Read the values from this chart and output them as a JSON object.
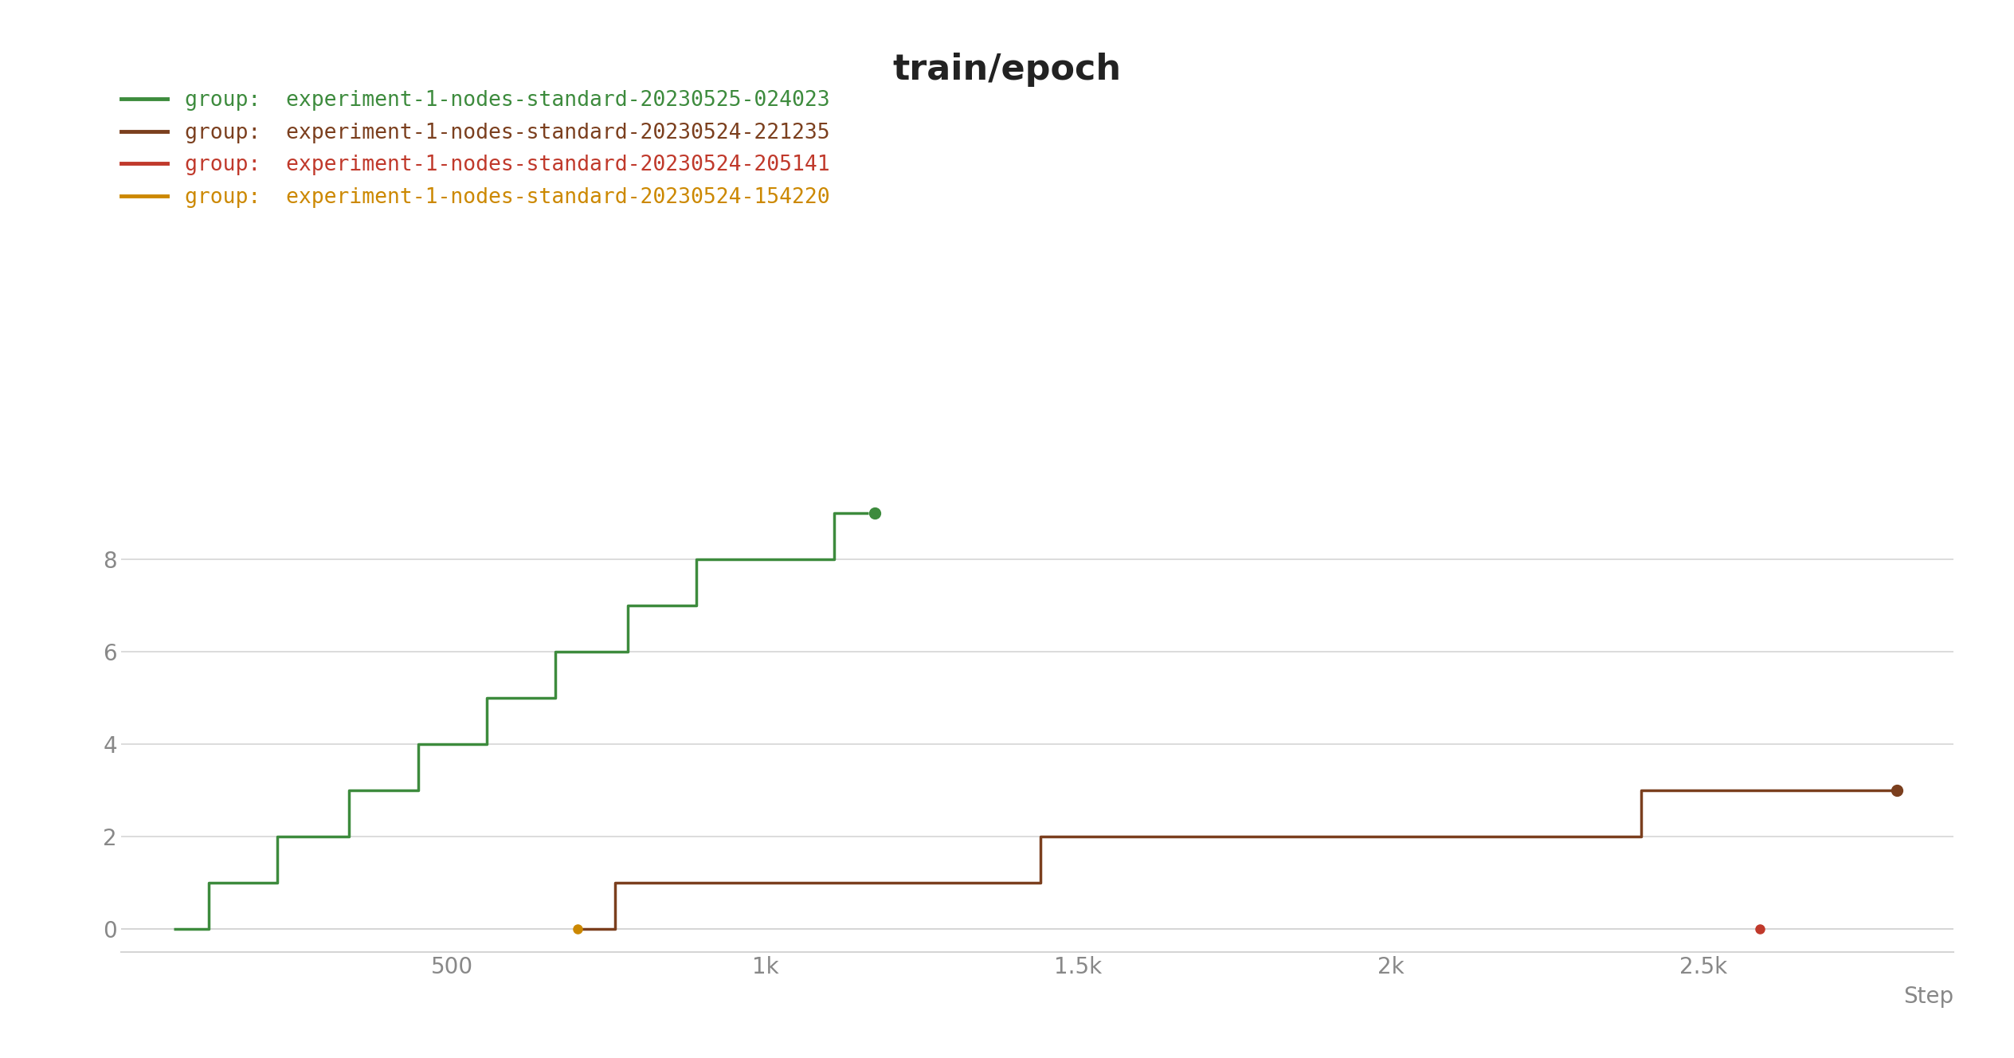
{
  "title": "train/epoch",
  "background_color": "#ffffff",
  "series": [
    {
      "label": "group:  experiment-1-nodes-standard-20230525-024023",
      "color": "#3d8b3d",
      "linewidth": 2.5,
      "x": [
        55,
        110,
        165,
        220,
        280,
        335,
        390,
        445,
        500,
        555,
        610,
        665,
        720,
        780,
        835,
        890,
        945,
        1000,
        1055,
        1110,
        1165
      ],
      "y": [
        0,
        1,
        1,
        2,
        2,
        3,
        3,
        4,
        4,
        5,
        5,
        6,
        6,
        7,
        7,
        8,
        8,
        8,
        8,
        9,
        9
      ],
      "end_marker": true,
      "end_x": 1175,
      "end_y": 9
    },
    {
      "label": "group:  experiment-1-nodes-standard-20230524-221235",
      "color": "#7b3f1e",
      "linewidth": 2.5,
      "x": [
        705,
        760,
        820,
        880,
        940,
        1000,
        1060,
        1420,
        1440,
        1470,
        1530,
        1600,
        2240,
        2280,
        2320,
        2360,
        2400,
        2750,
        2810
      ],
      "y": [
        0,
        1,
        1,
        1,
        1,
        1,
        1,
        1,
        2,
        2,
        2,
        2,
        2,
        2,
        2,
        2,
        3,
        3,
        3
      ],
      "end_marker": true,
      "end_x": 2810,
      "end_y": 3
    },
    {
      "label": "group:  experiment-1-nodes-standard-20230524-205141",
      "color": "#c0392b",
      "linewidth": 2.5,
      "x": [
        2590
      ],
      "y": [
        0
      ],
      "end_marker": true,
      "end_x": 2590,
      "end_y": 0
    },
    {
      "label": "group:  experiment-1-nodes-standard-20230524-154220",
      "color": "#cc8800",
      "linewidth": 2.5,
      "x": [
        700
      ],
      "y": [
        0
      ],
      "end_marker": true,
      "end_x": 700,
      "end_y": 0
    }
  ],
  "xlim": [
    -30,
    2900
  ],
  "ylim": [
    -0.5,
    9.8
  ],
  "xticks": [
    500,
    1000,
    1500,
    2000,
    2500
  ],
  "xticklabels": [
    "500",
    "1k",
    "1.5k",
    "2k",
    "2.5k"
  ],
  "yticks": [
    0,
    2,
    4,
    6,
    8
  ],
  "xlabel": "Step",
  "grid_color": "#d5d5d5",
  "tick_color": "#888888",
  "title_fontsize": 32,
  "label_fontsize": 20,
  "tick_fontsize": 20,
  "legend_fontsize": 19
}
